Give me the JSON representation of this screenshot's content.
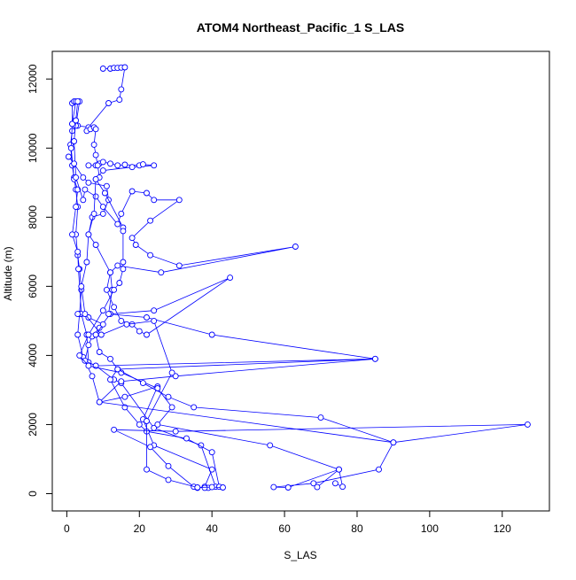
{
  "chart_data": {
    "type": "line",
    "title": "ATOM4 Northeast_Pacific_1 S_LAS",
    "xlabel": "S_LAS",
    "ylabel": "Altitude (m)",
    "xlim": [
      -4,
      133
    ],
    "ylim": [
      -500,
      12800
    ],
    "x_ticks": [
      0,
      20,
      40,
      60,
      80,
      100,
      120
    ],
    "y_ticks": [
      0,
      2000,
      4000,
      6000,
      8000,
      10000,
      12000
    ],
    "grid": false,
    "legend": "none",
    "series_color": "#0000ff",
    "series": [
      {
        "points": [
          [
            10,
            12300
          ],
          [
            12,
            12300
          ],
          [
            13,
            12320
          ],
          [
            14,
            12320
          ],
          [
            15,
            12330
          ],
          [
            16,
            12340
          ],
          [
            15,
            11700
          ],
          [
            14.5,
            11400
          ],
          [
            11.5,
            11300
          ],
          [
            6,
            10600
          ],
          [
            3,
            10650
          ],
          [
            1.5,
            10700
          ],
          [
            1.5,
            11300
          ],
          [
            2,
            11350
          ],
          [
            3.5,
            11350
          ],
          [
            2.5,
            10650
          ],
          [
            1.5,
            10500
          ],
          [
            1,
            10100
          ],
          [
            1.5,
            9500
          ],
          [
            2,
            9150
          ],
          [
            2.5,
            8800
          ],
          [
            3,
            8300
          ],
          [
            2.5,
            7500
          ],
          [
            3,
            6900
          ],
          [
            3.5,
            6500
          ],
          [
            4,
            5900
          ],
          [
            3.5,
            5200
          ],
          [
            3,
            4600
          ],
          [
            4.5,
            3950
          ],
          [
            7,
            3400
          ],
          [
            9,
            2650
          ],
          [
            16,
            2800
          ],
          [
            25,
            3100
          ],
          [
            21,
            2150
          ],
          [
            24,
            1400
          ],
          [
            40,
            700
          ],
          [
            38,
            200
          ],
          [
            36,
            170
          ]
        ]
      },
      {
        "points": [
          [
            2.5,
            11350
          ],
          [
            1.5,
            10700
          ],
          [
            1.2,
            10000
          ],
          [
            2,
            9100
          ],
          [
            3,
            8800
          ],
          [
            2.5,
            8300
          ],
          [
            1.5,
            7500
          ],
          [
            3,
            7000
          ],
          [
            3.2,
            6500
          ],
          [
            4,
            5200
          ],
          [
            5.5,
            4600
          ],
          [
            6,
            3800
          ],
          [
            8,
            3700
          ],
          [
            13,
            3300
          ],
          [
            15,
            3200
          ],
          [
            24,
            1900
          ],
          [
            37,
            1400
          ],
          [
            41,
            200
          ],
          [
            39,
            170
          ]
        ]
      },
      {
        "points": [
          [
            3,
            11350
          ],
          [
            2.5,
            10800
          ],
          [
            2,
            10200
          ],
          [
            2.5,
            9150
          ],
          [
            4.5,
            8500
          ],
          [
            5,
            8800
          ],
          [
            8,
            8600
          ],
          [
            10,
            8300
          ],
          [
            14,
            7800
          ],
          [
            15,
            8100
          ],
          [
            18,
            8750
          ],
          [
            22,
            8700
          ],
          [
            24,
            8500
          ],
          [
            31,
            8500
          ],
          [
            23,
            7900
          ],
          [
            18,
            7400
          ],
          [
            19,
            7200
          ],
          [
            23,
            6900
          ],
          [
            31,
            6600
          ],
          [
            63,
            7150
          ],
          [
            26,
            6400
          ],
          [
            14,
            6600
          ],
          [
            12,
            6400
          ],
          [
            11,
            5900
          ],
          [
            13,
            5400
          ],
          [
            15,
            5000
          ],
          [
            18,
            4900
          ],
          [
            20,
            4700
          ],
          [
            22,
            4600
          ],
          [
            45,
            6250
          ],
          [
            24,
            5300
          ],
          [
            12,
            5200
          ],
          [
            9,
            4800
          ],
          [
            7,
            4550
          ],
          [
            6,
            4300
          ],
          [
            5,
            3850
          ],
          [
            8,
            3700
          ],
          [
            85,
            3900
          ],
          [
            14,
            3600
          ],
          [
            12,
            3300
          ],
          [
            16,
            2500
          ],
          [
            20,
            2000
          ],
          [
            22,
            1800
          ],
          [
            33,
            1600
          ],
          [
            40,
            1200
          ],
          [
            42,
            200
          ]
        ]
      },
      {
        "points": [
          [
            0.5,
            9750
          ],
          [
            2,
            9550
          ],
          [
            4.5,
            9150
          ],
          [
            6,
            9000
          ],
          [
            11,
            8900
          ],
          [
            11.5,
            8500
          ],
          [
            10,
            8100
          ],
          [
            7,
            8000
          ],
          [
            6,
            7500
          ],
          [
            8,
            7200
          ],
          [
            12,
            6400
          ],
          [
            12.5,
            5900
          ],
          [
            11.5,
            5200
          ],
          [
            22,
            5100
          ],
          [
            40,
            4600
          ],
          [
            85,
            3900
          ],
          [
            30,
            3400
          ],
          [
            15,
            3250
          ],
          [
            9,
            2650
          ],
          [
            90,
            1480
          ],
          [
            127,
            2000
          ],
          [
            30,
            1800
          ],
          [
            13,
            1850
          ],
          [
            23,
            1350
          ],
          [
            28,
            800
          ],
          [
            35,
            200
          ],
          [
            38,
            170
          ]
        ]
      },
      {
        "points": [
          [
            6,
            9500
          ],
          [
            8,
            9500
          ],
          [
            9,
            9550
          ],
          [
            10,
            9600
          ],
          [
            12,
            9550
          ],
          [
            14,
            9500
          ],
          [
            16,
            9520
          ],
          [
            20,
            9500
          ],
          [
            21,
            9530
          ],
          [
            24,
            9500
          ],
          [
            18,
            9450
          ],
          [
            10,
            9350
          ],
          [
            8,
            9100
          ],
          [
            10.5,
            8700
          ],
          [
            15.5,
            7700
          ],
          [
            15.5,
            7600
          ],
          [
            15.5,
            6700
          ],
          [
            15.5,
            6500
          ],
          [
            14.5,
            6100
          ],
          [
            13,
            5900
          ],
          [
            10,
            5300
          ],
          [
            6,
            4600
          ],
          [
            3.5,
            4000
          ],
          [
            6,
            3700
          ],
          [
            15,
            3500
          ],
          [
            25,
            3050
          ],
          [
            29,
            2500
          ],
          [
            25,
            2000
          ],
          [
            56,
            1400
          ],
          [
            75,
            700
          ],
          [
            76,
            200
          ],
          [
            74,
            300
          ]
        ]
      },
      {
        "points": [
          [
            3,
            5200
          ],
          [
            6,
            5100
          ],
          [
            10,
            4900
          ],
          [
            8,
            4600
          ],
          [
            9,
            4100
          ],
          [
            12,
            3900
          ],
          [
            14,
            3600
          ],
          [
            21,
            3200
          ],
          [
            28,
            2800
          ],
          [
            35,
            2500
          ],
          [
            70,
            2200
          ],
          [
            90,
            1480
          ],
          [
            86,
            700
          ],
          [
            68,
            300
          ],
          [
            57,
            190
          ],
          [
            61,
            180
          ],
          [
            75,
            700
          ],
          [
            69,
            190
          ]
        ]
      },
      {
        "points": [
          [
            5.5,
            10500
          ],
          [
            6.5,
            10550
          ],
          [
            7.5,
            10600
          ],
          [
            8,
            10550
          ],
          [
            7.5,
            10100
          ],
          [
            8,
            9800
          ],
          [
            8.5,
            9500
          ],
          [
            9,
            9150
          ],
          [
            8,
            9100
          ],
          [
            7.5,
            8100
          ],
          [
            6,
            7500
          ],
          [
            5.5,
            6700
          ],
          [
            4,
            6000
          ],
          [
            5,
            5200
          ],
          [
            9.5,
            4600
          ],
          [
            16.5,
            4900
          ],
          [
            24,
            5000
          ],
          [
            29,
            3500
          ],
          [
            22,
            2100
          ],
          [
            22,
            700
          ],
          [
            28,
            400
          ],
          [
            36,
            180
          ],
          [
            40,
            190
          ],
          [
            43,
            180
          ]
        ]
      }
    ]
  }
}
